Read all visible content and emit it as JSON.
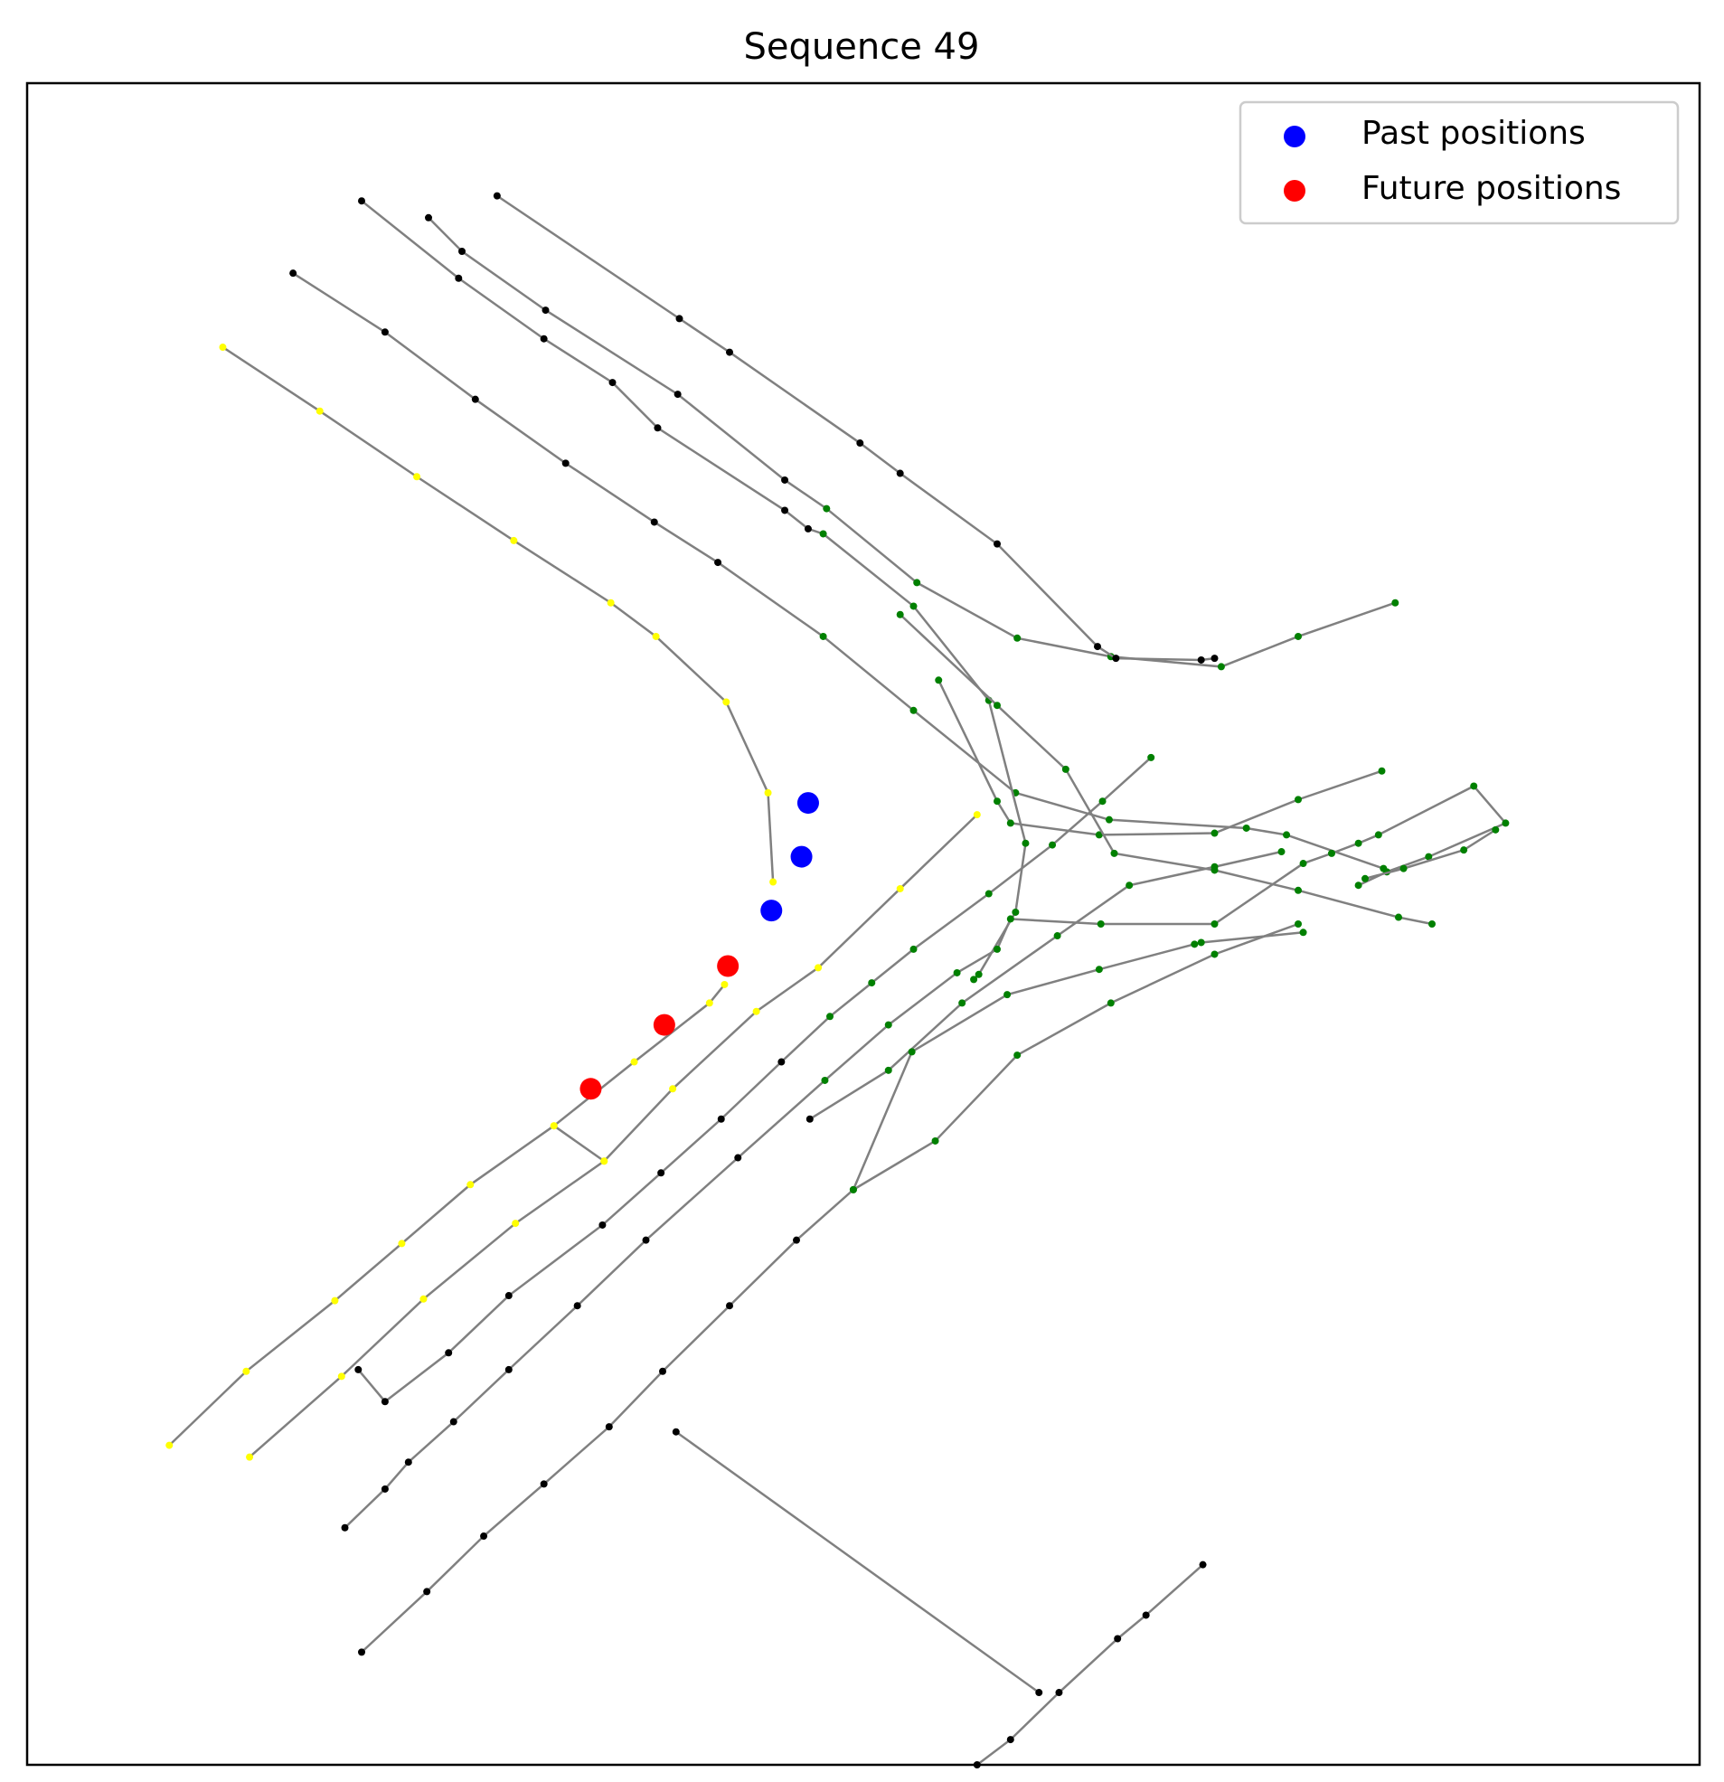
{
  "chart_data": {
    "type": "scatter",
    "title": "Sequence 49",
    "xlabel": "",
    "ylabel": "",
    "xlim": [
      0,
      100
    ],
    "ylim": [
      0,
      100
    ],
    "axis_ticks": "hidden",
    "grid": false,
    "legend_position": "top-right",
    "colors": {
      "past": "#0000ff",
      "future": "#ff0000",
      "lane_line": "#808080",
      "node_black": "#000000",
      "node_green": "#008000",
      "node_yellow": "#ffff00"
    },
    "legend": [
      {
        "label": "Past positions",
        "color": "#0000ff"
      },
      {
        "label": "Future positions",
        "color": "#ff0000"
      }
    ],
    "series": [
      {
        "name": "Past positions",
        "points": [
          [
            46.7,
            57.2
          ],
          [
            46.3,
            54.0
          ],
          [
            44.5,
            50.8
          ]
        ]
      },
      {
        "name": "Future positions",
        "points": [
          [
            41.9,
            47.5
          ],
          [
            38.1,
            44.0
          ],
          [
            33.7,
            40.2
          ]
        ]
      }
    ],
    "lane_polylines": [
      {
        "color": "yellow",
        "points": [
          [
            11.7,
            84.3
          ],
          [
            17.5,
            80.5
          ],
          [
            23.3,
            76.6
          ],
          [
            29.1,
            72.8
          ],
          [
            34.9,
            69.1
          ],
          [
            37.6,
            67.1
          ],
          [
            41.8,
            63.2
          ],
          [
            44.3,
            57.8
          ],
          [
            44.6,
            52.5
          ]
        ]
      },
      {
        "color": "yellow",
        "points": [
          [
            41.7,
            46.4
          ],
          [
            40.8,
            45.3
          ],
          [
            36.3,
            41.8
          ],
          [
            31.5,
            38.0
          ],
          [
            26.5,
            34.5
          ],
          [
            22.4,
            31.0
          ],
          [
            18.4,
            27.6
          ],
          [
            13.1,
            23.4
          ],
          [
            8.5,
            19.0
          ]
        ]
      },
      {
        "color": "yellow",
        "points": [
          [
            31.5,
            38.0
          ],
          [
            34.5,
            35.9
          ]
        ]
      },
      {
        "color": "yellow",
        "points": [
          [
            13.3,
            18.3
          ],
          [
            18.8,
            23.1
          ],
          [
            23.7,
            27.7
          ],
          [
            29.2,
            32.2
          ],
          [
            34.5,
            35.9
          ],
          [
            38.6,
            40.2
          ],
          [
            43.6,
            44.8
          ],
          [
            47.3,
            47.4
          ],
          [
            52.2,
            52.1
          ],
          [
            56.8,
            56.5
          ]
        ]
      },
      {
        "color": "mixed",
        "points": [
          [
            15.9,
            88.7
          ],
          [
            21.4,
            85.2
          ],
          [
            26.8,
            81.2
          ],
          [
            32.2,
            77.4
          ],
          [
            37.5,
            73.9
          ],
          [
            41.3,
            71.5
          ],
          [
            47.6,
            67.1
          ],
          [
            53.0,
            62.7
          ],
          [
            59.1,
            57.8
          ],
          [
            64.7,
            56.2
          ],
          [
            72.9,
            55.7
          ],
          [
            75.3,
            55.3
          ],
          [
            81.1,
            53.3
          ]
        ]
      },
      {
        "color": "mixed",
        "points": [
          [
            20.0,
            93.0
          ],
          [
            25.8,
            88.4
          ],
          [
            30.9,
            84.8
          ],
          [
            35.0,
            82.2
          ],
          [
            37.7,
            79.5
          ],
          [
            45.3,
            74.6
          ],
          [
            46.7,
            73.5
          ],
          [
            47.6,
            73.2
          ],
          [
            53.0,
            68.9
          ],
          [
            57.5,
            63.3
          ],
          [
            59.7,
            54.8
          ],
          [
            59.1,
            50.7
          ],
          [
            56.9,
            47.0
          ],
          [
            56.6,
            46.7
          ]
        ]
      },
      {
        "color": "mixed",
        "points": [
          [
            24.0,
            92.0
          ],
          [
            26.0,
            90.0
          ],
          [
            31.0,
            86.5
          ],
          [
            38.9,
            81.5
          ],
          [
            45.3,
            76.4
          ],
          [
            47.8,
            74.7
          ],
          [
            53.2,
            70.3
          ],
          [
            59.2,
            67.0
          ],
          [
            64.8,
            65.9
          ],
          [
            71.4,
            65.3
          ],
          [
            76.0,
            67.1
          ],
          [
            81.8,
            69.1
          ]
        ]
      },
      {
        "color": "black",
        "points": [
          [
            28.1,
            93.3
          ],
          [
            39.0,
            86.0
          ],
          [
            42.0,
            84.0
          ],
          [
            49.8,
            78.6
          ],
          [
            52.2,
            76.8
          ],
          [
            58.0,
            72.6
          ],
          [
            64.0,
            66.5
          ],
          [
            65.1,
            65.8
          ],
          [
            70.2,
            65.7
          ],
          [
            71.0,
            65.8
          ]
        ]
      },
      {
        "color": "mixed",
        "points": [
          [
            19.8,
            23.5
          ],
          [
            21.4,
            21.6
          ],
          [
            25.2,
            24.5
          ],
          [
            28.8,
            27.9
          ],
          [
            34.4,
            32.1
          ],
          [
            37.9,
            35.2
          ],
          [
            41.5,
            38.4
          ],
          [
            45.1,
            41.8
          ],
          [
            48.0,
            44.5
          ],
          [
            50.5,
            46.5
          ],
          [
            53.0,
            48.5
          ],
          [
            57.5,
            51.8
          ],
          [
            61.3,
            54.7
          ],
          [
            64.3,
            57.3
          ],
          [
            67.2,
            59.9
          ]
        ]
      },
      {
        "color": "mixed",
        "points": [
          [
            19.0,
            14.1
          ],
          [
            21.4,
            16.4
          ],
          [
            22.8,
            18.0
          ],
          [
            25.5,
            20.4
          ],
          [
            28.8,
            23.5
          ],
          [
            32.9,
            27.3
          ],
          [
            37.0,
            31.2
          ],
          [
            42.5,
            36.1
          ],
          [
            47.7,
            40.7
          ],
          [
            51.5,
            44.0
          ],
          [
            55.6,
            47.1
          ],
          [
            58.0,
            48.5
          ],
          [
            58.8,
            50.3
          ],
          [
            64.2,
            50.0
          ],
          [
            71.0,
            50.0
          ],
          [
            76.3,
            53.6
          ],
          [
            78.0,
            54.2
          ],
          [
            79.6,
            54.8
          ],
          [
            80.8,
            55.3
          ],
          [
            86.5,
            58.2
          ],
          [
            88.4,
            56.0
          ],
          [
            83.8,
            54.0
          ],
          [
            81.3,
            53.1
          ],
          [
            79.6,
            52.3
          ]
        ]
      },
      {
        "color": "mixed",
        "points": [
          [
            54.5,
            64.5
          ],
          [
            58.0,
            57.3
          ],
          [
            58.8,
            56.0
          ],
          [
            64.1,
            55.3
          ],
          [
            71.0,
            55.4
          ],
          [
            76.0,
            57.4
          ],
          [
            81.0,
            59.1
          ]
        ]
      },
      {
        "color": "mixed",
        "points": [
          [
            52.2,
            68.4
          ],
          [
            58.0,
            63.0
          ],
          [
            62.1,
            59.2
          ],
          [
            65.0,
            54.2
          ],
          [
            71.0,
            53.2
          ],
          [
            76.0,
            52.0
          ],
          [
            82.0,
            50.4
          ],
          [
            84.0,
            50.0
          ]
        ]
      },
      {
        "color": "mixed",
        "points": [
          [
            46.8,
            38.4
          ],
          [
            51.5,
            41.3
          ],
          [
            55.9,
            45.3
          ],
          [
            61.6,
            49.3
          ],
          [
            65.9,
            52.3
          ],
          [
            71.0,
            53.4
          ],
          [
            75.0,
            54.3
          ]
        ]
      },
      {
        "color": "mixed",
        "points": [
          [
            76.0,
            50.0
          ],
          [
            71.0,
            48.2
          ],
          [
            64.8,
            45.3
          ],
          [
            59.2,
            42.2
          ],
          [
            54.3,
            37.1
          ],
          [
            49.4,
            34.2
          ]
        ]
      },
      {
        "color": "mixed",
        "points": [
          [
            76.3,
            49.5
          ],
          [
            70.2,
            48.9
          ],
          [
            69.8,
            48.8
          ],
          [
            64.1,
            47.3
          ],
          [
            58.6,
            45.8
          ],
          [
            52.9,
            42.4
          ],
          [
            49.4,
            34.2
          ],
          [
            46.0,
            31.2
          ],
          [
            42.0,
            27.3
          ],
          [
            38.0,
            23.4
          ],
          [
            34.8,
            20.1
          ],
          [
            30.9,
            16.7
          ],
          [
            27.3,
            13.6
          ],
          [
            23.9,
            10.3
          ],
          [
            20.0,
            6.7
          ]
        ]
      },
      {
        "color": "black",
        "points": [
          [
            38.8,
            19.8
          ],
          [
            60.5,
            4.3
          ]
        ]
      },
      {
        "color": "black",
        "points": [
          [
            56.8,
            0.0
          ],
          [
            58.8,
            1.5
          ],
          [
            61.7,
            4.3
          ],
          [
            65.2,
            7.5
          ],
          [
            66.9,
            8.9
          ],
          [
            70.3,
            11.9
          ]
        ]
      },
      {
        "color": "mixed",
        "points": [
          [
            80.0,
            52.7
          ],
          [
            82.3,
            53.3
          ],
          [
            85.9,
            54.4
          ],
          [
            87.8,
            55.6
          ]
        ]
      }
    ]
  }
}
